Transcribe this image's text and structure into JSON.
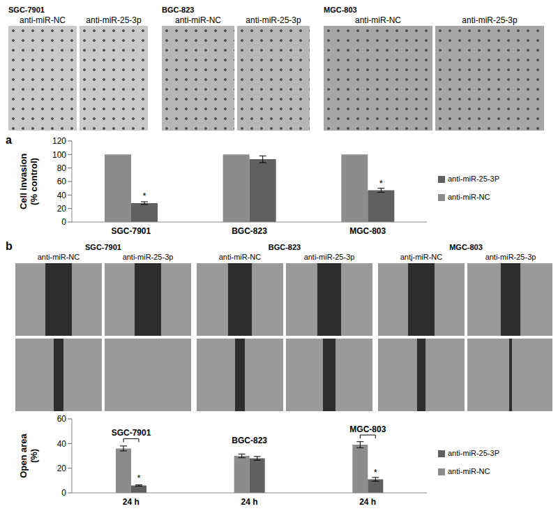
{
  "panels": [
    {
      "label": "a",
      "groups": [
        {
          "title": "SGC-7901",
          "images": [
            "anti-miR-NC",
            "anti-miR-25-3p"
          ]
        },
        {
          "title": "BGC-823",
          "images": [
            "anti-miR-NC",
            "anti-miR-25-3p"
          ]
        },
        {
          "title": "MGC-803",
          "images": [
            "anti-miR-NC",
            "anti-miR-25-3p"
          ]
        }
      ]
    },
    {
      "label": "b",
      "groups": [
        {
          "title": "SGC-7901",
          "images": [
            "anti-miR-NC",
            "anti-miR-25-3p"
          ]
        },
        {
          "title": "BGC-823",
          "images": [
            "anti-miR-NC",
            "anti-miR-25-3p"
          ]
        },
        {
          "title": "MGC-803",
          "images": [
            "antj-miR-NC",
            "anti-miR-25-3p"
          ]
        }
      ]
    }
  ],
  "chart_data": [
    {
      "type": "bar",
      "ylabel": "Cell invasion (% control)",
      "categories": [
        "SGC-7901",
        "BGC-823",
        "MGC-803"
      ],
      "series": [
        {
          "name": "anti-miR-NC",
          "color": "#8c8c8c",
          "values": [
            100,
            100,
            100
          ]
        },
        {
          "name": "anti-miR-25-3P",
          "color": "#606060",
          "values": [
            28,
            93,
            47
          ],
          "errors": [
            2,
            5,
            3
          ]
        }
      ],
      "annotations": [
        {
          "text": "*",
          "category": 0,
          "series": 1
        },
        {
          "text": "*",
          "category": 2,
          "series": 1
        }
      ],
      "ylim": [
        0,
        120
      ],
      "yticks": [
        0,
        20,
        40,
        60,
        80,
        100,
        120
      ],
      "legend": "right"
    },
    {
      "type": "bar",
      "ylabel": "Open area (%)",
      "categories": [
        "24 h",
        "24 h",
        "24 h"
      ],
      "group_labels": [
        "SGC-7901",
        "BGC-823",
        "MGC-803"
      ],
      "series": [
        {
          "name": "anti-miR-NC",
          "color": "#8c8c8c",
          "values": [
            36,
            30,
            39
          ],
          "errors": [
            2,
            1.5,
            2.5
          ]
        },
        {
          "name": "anti-miR-25-3P",
          "color": "#606060",
          "values": [
            6,
            28,
            11
          ],
          "errors": [
            0.5,
            1.5,
            1.5
          ]
        }
      ],
      "annotations": [
        {
          "text": "*",
          "category": 0,
          "series": 1
        },
        {
          "text": "*",
          "category": 2,
          "series": 1
        }
      ],
      "ylim": [
        0,
        60
      ],
      "yticks": [
        0,
        20,
        40,
        60
      ],
      "legend": "right"
    }
  ]
}
